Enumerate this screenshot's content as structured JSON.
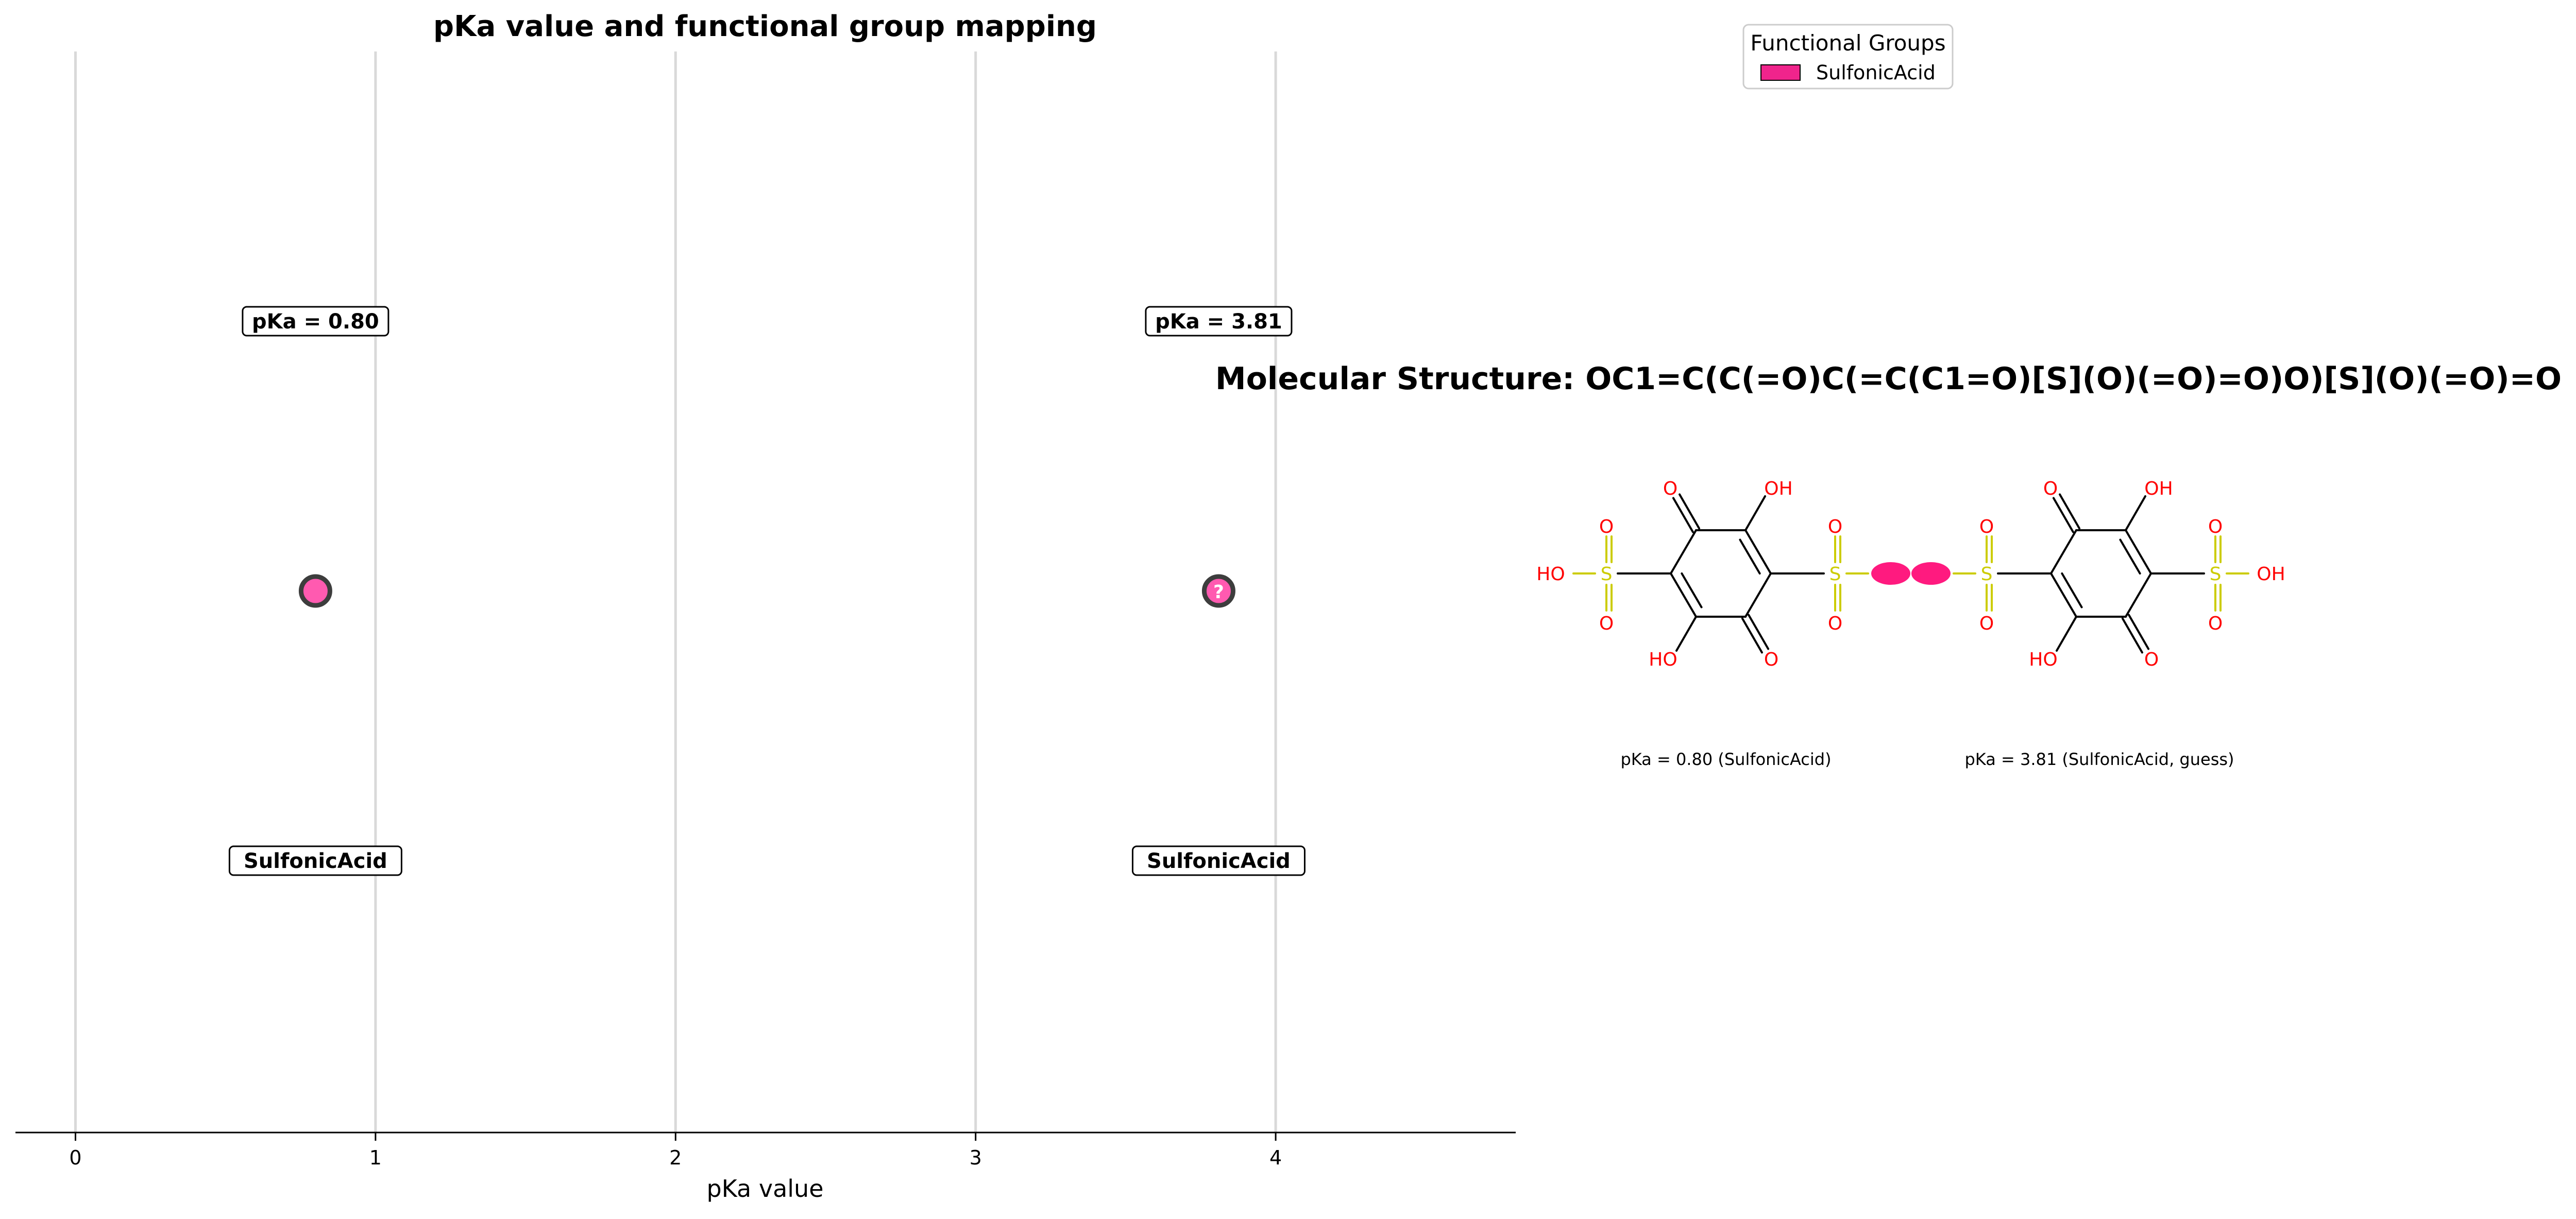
{
  "chart_data": [
    {
      "type": "scatter",
      "title": "pKa value and functional group mapping",
      "xlabel": "pKa value",
      "ylabel": "",
      "xlim": [
        -0.2,
        4.8
      ],
      "xticks": [
        0,
        1,
        2,
        3,
        4
      ],
      "xtick_labels": [
        "0",
        "1",
        "2",
        "3",
        "4"
      ],
      "grid": "vertical",
      "points": [
        {
          "x": 0.8,
          "label_top": "pKa = 0.80",
          "label_bottom": "SulfonicAcid",
          "marker_text": ""
        },
        {
          "x": 3.81,
          "label_top": "pKa = 3.81",
          "label_bottom": "SulfonicAcid",
          "marker_text": "?"
        }
      ],
      "point_color": "#ff5ab0",
      "edge_color": "#3d3d3d",
      "legend": {
        "title": "Functional Groups",
        "placement": "top-right",
        "entries": [
          {
            "name": "SulfonicAcid",
            "color": "#f0248c"
          }
        ]
      }
    }
  ],
  "structure_panel": {
    "title": "Molecular Structure: OC1=C(C(=O)C(=C(C1=O)[S](O)(=O)=O)O)[S](O)(=O)=O",
    "highlight_color": "#ff1a7f",
    "atom_color": "#ff0000",
    "sulfur_color": "#cccc00",
    "bond_color": "#000000",
    "atoms": {
      "O": "O",
      "OH": "OH",
      "HO": "HO",
      "S": "S"
    },
    "captions": [
      "pKa = 0.80 (SulfonicAcid)",
      "pKa = 3.81 (SulfonicAcid, guess)"
    ]
  }
}
